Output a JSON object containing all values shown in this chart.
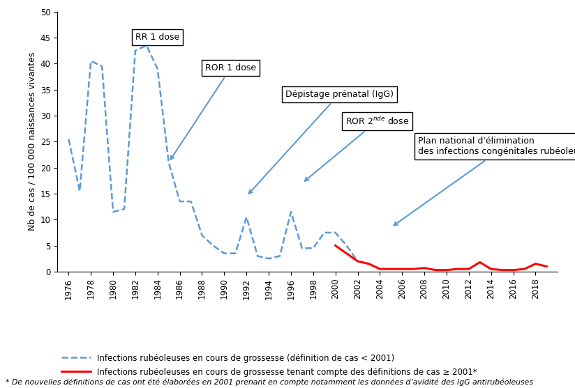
{
  "blue_dashed_x": [
    1976,
    1977,
    1978,
    1979,
    1980,
    1981,
    1982,
    1983,
    1984,
    1985,
    1986,
    1987,
    1988,
    1989,
    1990,
    1991,
    1992,
    1993,
    1994,
    1995,
    1996,
    1997,
    1998,
    1999,
    2000,
    2001,
    2002,
    2003,
    2004
  ],
  "blue_dashed_y": [
    25.5,
    15.5,
    40.5,
    39.5,
    11.5,
    12.0,
    42.5,
    43.5,
    39.0,
    21.0,
    13.5,
    13.5,
    7.0,
    5.0,
    3.5,
    3.5,
    10.5,
    3.0,
    2.5,
    3.0,
    11.5,
    4.5,
    4.5,
    7.5,
    7.5,
    5.0,
    2.0,
    1.5,
    0.5
  ],
  "red_solid_x": [
    2000,
    2001,
    2002,
    2003,
    2004,
    2005,
    2006,
    2007,
    2008,
    2009,
    2010,
    2011,
    2012,
    2013,
    2014,
    2015,
    2016,
    2017,
    2018,
    2019
  ],
  "red_solid_y": [
    5.0,
    3.5,
    2.0,
    1.5,
    0.5,
    0.5,
    0.5,
    0.5,
    0.7,
    0.3,
    0.3,
    0.5,
    0.5,
    1.8,
    0.5,
    0.3,
    0.3,
    0.5,
    1.5,
    1.0
  ],
  "ylabel": "Nb de cas / 100 000 naissances vivantes",
  "ylim": [
    0,
    50
  ],
  "yticks": [
    0,
    5,
    10,
    15,
    20,
    25,
    30,
    35,
    40,
    45,
    50
  ],
  "xlim": [
    1975,
    2020
  ],
  "xticks": [
    1976,
    1978,
    1980,
    1982,
    1984,
    1986,
    1988,
    1990,
    1992,
    1994,
    1996,
    1998,
    2000,
    2002,
    2004,
    2006,
    2008,
    2010,
    2012,
    2014,
    2016,
    2018
  ],
  "blue_color": "#5B9BD5",
  "red_color": "#FF0000",
  "legend1": "Infections rubéoleuses en cours de grossesse (définition de cas < 2001)",
  "legend2": "Infections rubéoleuses en cours de grossesse tenant compte des définitions de cas ≥ 2001*",
  "footnote": "* De nouvelles définitions de cas ont été élaborées en 2001 prenant en compte notamment les données d’avidité des IgG antirubéoleuses"
}
